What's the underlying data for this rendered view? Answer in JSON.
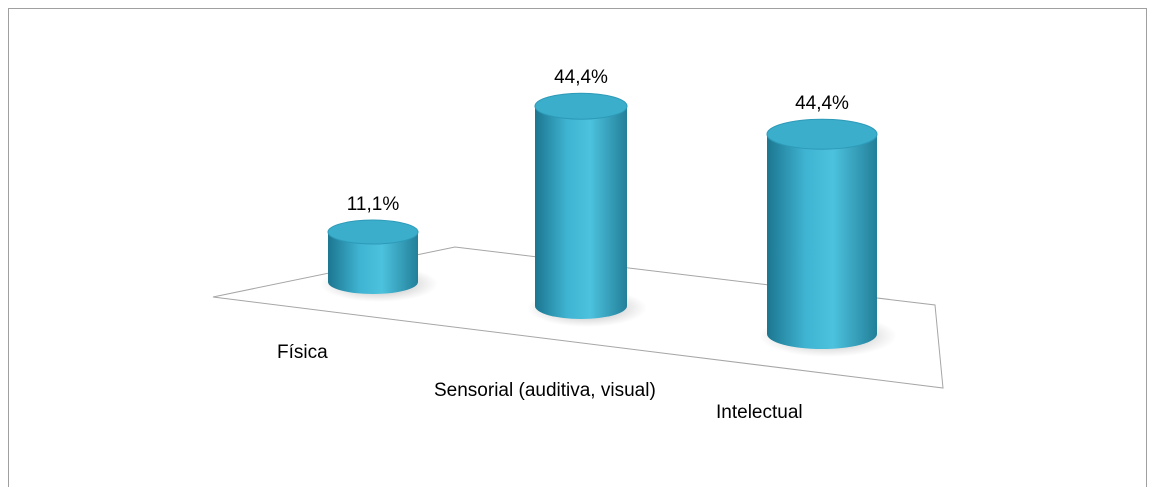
{
  "chart_data": {
    "type": "bar3d",
    "categories": [
      "Física",
      "Sensorial (auditiva, visual)",
      "Intelectual"
    ],
    "values": [
      11.1,
      44.4,
      44.4
    ],
    "value_labels": [
      "11,1%",
      "44,4%",
      "44,4%"
    ],
    "color": "#3aaecb"
  }
}
